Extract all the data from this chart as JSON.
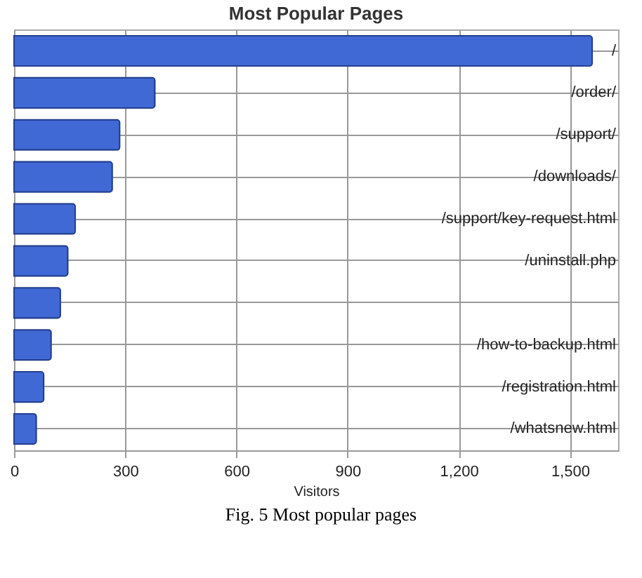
{
  "chart_data": {
    "type": "bar",
    "orientation": "horizontal",
    "title": "Most Popular Pages",
    "xlabel": "Visitors",
    "categories": [
      "/",
      "/order/",
      "/support/",
      "/downloads/",
      "/support/key-request.html",
      "/uninstall.php",
      null,
      "/how-to-backup.html",
      "/registration.html",
      "/whatsnew.html"
    ],
    "values": [
      1560,
      380,
      285,
      265,
      165,
      145,
      125,
      100,
      80,
      60
    ],
    "color": "#4169d6",
    "xlim": [
      0,
      1630
    ],
    "xticks": [
      0,
      {
        "value": 300,
        "label": "300"
      },
      600,
      900,
      {
        "value": 1200,
        "label": "1,200"
      },
      {
        "value": 1500,
        "label": "1,500"
      }
    ],
    "grid": true,
    "annotations": [
      "Fig. 5 Most popular pages"
    ]
  }
}
